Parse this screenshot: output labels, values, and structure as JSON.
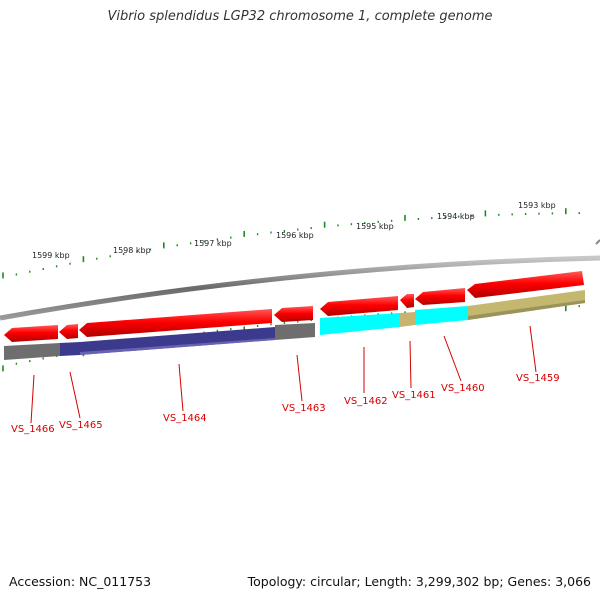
{
  "title": "Vibrio splendidus LGP32 chromosome 1, complete genome",
  "footer": {
    "accession": "Accession: NC_011753",
    "summary": "Topology: circular; Length: 3,299,302 bp; Genes: 3,066"
  },
  "ruler": [
    "1599 kbp",
    "1598 kbp",
    "1597 kbp",
    "1596 kbp",
    "1595 kbp",
    "1594 kbp",
    "1593 kbp"
  ],
  "genes": [
    "VS_1466",
    "VS_1465",
    "VS_1464",
    "VS_1463",
    "VS_1462",
    "VS_1461",
    "VS_1460",
    "VS_1459"
  ],
  "colors": {
    "gene": "#ff0000",
    "gray": "#6e6e6e",
    "navy": "#3c3a8c",
    "cyan": "#00ffff",
    "khaki": "#c8b46e",
    "olive": "#c4b870",
    "tick": "#1f8a1f",
    "label": "#d60000"
  }
}
